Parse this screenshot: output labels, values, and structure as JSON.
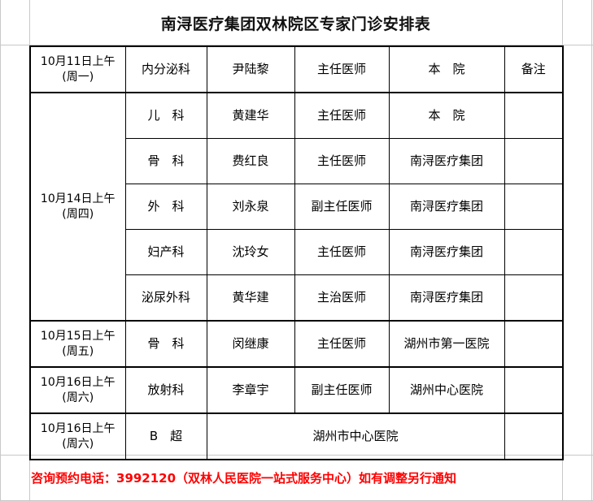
{
  "title": "南浔医疗集团双林院区专家门诊安排表",
  "header_row": {
    "date": "10月11日上午",
    "weekday": "(周一)",
    "dept": "内分泌科",
    "doctor": "尹陆黎",
    "title": "主任医师",
    "hospital": "本　院",
    "remark": "备注"
  },
  "groups": [
    {
      "date": "10月14日上午",
      "weekday": "(周四)",
      "rows": [
        {
          "dept": "儿　科",
          "doctor": "黄建华",
          "title": "主任医师",
          "hospital": "本　院"
        },
        {
          "dept": "骨　科",
          "doctor": "费红良",
          "title": "主任医师",
          "hospital": "南浔医疗集团"
        },
        {
          "dept": "外　科",
          "doctor": "刘永泉",
          "title": "副主任医师",
          "hospital": "南浔医疗集团"
        },
        {
          "dept": "妇产科",
          "doctor": "沈玲女",
          "title": "主任医师",
          "hospital": "南浔医疗集团"
        },
        {
          "dept": "泌尿外科",
          "doctor": "黄华建",
          "title": "主治医师",
          "hospital": "南浔医疗集团"
        }
      ]
    },
    {
      "date": "10月15日上午",
      "weekday": "(周五)",
      "rows": [
        {
          "dept": "骨　科",
          "doctor": "闵继康",
          "title": "主任医师",
          "hospital": "湖州市第一医院"
        }
      ]
    },
    {
      "date": "10月16日上午",
      "weekday": "(周六)",
      "rows": [
        {
          "dept": "放射科",
          "doctor": "李章宇",
          "title": "副主任医师",
          "hospital": "湖州中心医院"
        }
      ]
    },
    {
      "date": "10月16日上午",
      "weekday": "(周六)",
      "rows": [
        {
          "dept": "B　超",
          "hospital": "湖州市中心医院"
        }
      ]
    }
  ],
  "footer": "咨询预约电话：3992120（双林人民医院一站式服务中心）如有调整另行通知",
  "colors": {
    "footer_text": "#ff0000",
    "gridline": "#c8c8c8"
  }
}
